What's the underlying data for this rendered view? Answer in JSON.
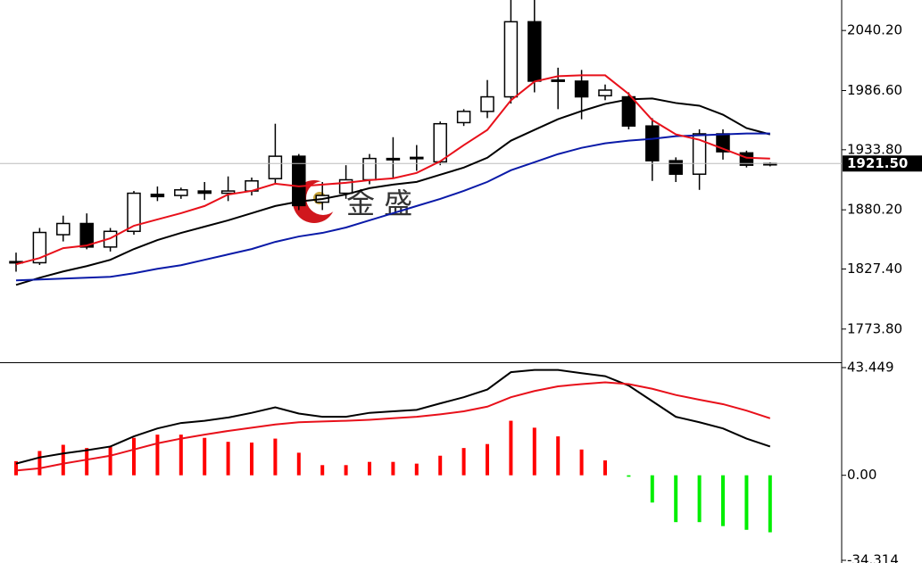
{
  "chart_data": [
    {
      "type": "candlestick",
      "open": [
        1833,
        1833,
        1858,
        1868,
        1847,
        1861,
        1894,
        1893,
        1897,
        1895,
        1897,
        1908,
        1928,
        1887,
        1895,
        1907,
        1925,
        1926,
        1923,
        1958,
        1968,
        1981,
        2048,
        1996,
        1995,
        1982,
        1981,
        1955,
        1924,
        1912,
        1948,
        1931,
        1921
      ],
      "high": [
        1842,
        1864,
        1875,
        1877,
        1864,
        1897,
        1901,
        1900,
        1905,
        1910,
        1909,
        1957,
        1930,
        1905,
        1920,
        1930,
        1945,
        1938,
        1959,
        1970,
        1996,
        2080,
        2080,
        2007,
        2005,
        1992,
        1985,
        1962,
        1927,
        1952,
        1952,
        1933,
        1922.5
      ],
      "low": [
        1825,
        1831,
        1852,
        1845,
        1843,
        1858,
        1888,
        1890,
        1889,
        1888,
        1893,
        1903,
        1880,
        1880,
        1890,
        1903,
        1908,
        1915,
        1920,
        1955,
        1962,
        1975,
        1985,
        1970,
        1961,
        1978,
        1952,
        1906,
        1905,
        1898,
        1925,
        1918,
        1919
      ],
      "close": [
        1834,
        1860,
        1868,
        1847,
        1861,
        1895,
        1892,
        1898,
        1895,
        1897,
        1906,
        1928,
        1884,
        1893,
        1907,
        1926,
        1926,
        1927,
        1957,
        1968,
        1981,
        2048,
        1995,
        1995,
        1981,
        1987,
        1955,
        1924,
        1912,
        1948,
        1932,
        1920,
        1921.5
      ],
      "up_color": "#ffffff",
      "down_color": "#000000",
      "overlays": [
        {
          "color": "#000000",
          "values": [
            1813.2,
            1819.6,
            1825.2,
            1830.0,
            1835.6,
            1845.2,
            1853.2,
            1859.6,
            1865.2,
            1870.8,
            1877.2,
            1883.6,
            1887.6,
            1889.9,
            1893.9,
            1899.5,
            1902.7,
            1905.1,
            1911.5,
            1917.9,
            1926.7,
            1941.9,
            1951.5,
            1961.1,
            1968.3,
            1974.7,
            1978.7,
            1979.5,
            1975.5,
            1973.1,
            1965.1,
            1953.1,
            1947.5
          ]
        },
        {
          "color": "#0a1aa8",
          "values": [
            1817.2,
            1818.0,
            1818.8,
            1819.6,
            1820.4,
            1823.6,
            1827.6,
            1830.8,
            1835.6,
            1840.4,
            1845.2,
            1851.6,
            1856.4,
            1859.6,
            1864.4,
            1870.8,
            1877.2,
            1883.6,
            1889.9,
            1897.1,
            1905.1,
            1915.5,
            1922.7,
            1929.9,
            1935.5,
            1939.5,
            1941.9,
            1943.5,
            1945.9,
            1946.7,
            1947.5,
            1948.3,
            1948.3
          ]
        },
        {
          "color": "#e8101a",
          "values": [
            1831.6,
            1837.2,
            1846.0,
            1848.4,
            1854.8,
            1866.0,
            1871.6,
            1877.2,
            1883.6,
            1893.9,
            1897.1,
            1903.5,
            1901.1,
            1902.7,
            1904.3,
            1906.7,
            1908.3,
            1913.1,
            1923.5,
            1937.9,
            1951.5,
            1977.9,
            1994.6,
            1999.4,
            2000.2,
            2000.2,
            1983.5,
            1960.3,
            1947.5,
            1942.7,
            1934.7,
            1926.7,
            1925.9
          ]
        }
      ],
      "ylim": [
        1745.0,
        2067.4
      ],
      "yticks": [
        {
          "value": 2040.2,
          "label": "2040.20"
        },
        {
          "value": 1986.6,
          "label": "1986.60"
        },
        {
          "value": 1933.8,
          "label": "1933.80"
        },
        {
          "value": 1880.2,
          "label": "1880.20"
        },
        {
          "value": 1827.4,
          "label": "1827.40"
        },
        {
          "value": 1773.8,
          "label": "1773.80"
        }
      ],
      "last_price": {
        "value": 1921.5,
        "label": "1921.50"
      },
      "watermark": "金 盛"
    },
    {
      "type": "macd",
      "histogram": [
        5.7,
        9.8,
        12.3,
        11.0,
        11.6,
        15.1,
        16.4,
        16.4,
        15.1,
        13.5,
        13.2,
        14.8,
        9.1,
        4.1,
        4.1,
        5.4,
        5.4,
        4.7,
        7.9,
        11.0,
        12.6,
        22.0,
        19.2,
        15.7,
        10.4,
        6.0,
        -0.6,
        -11.0,
        -18.9,
        -18.9,
        -20.5,
        -22.0,
        -23.0
      ],
      "positive_color": "#ff0000",
      "negative_color": "#00ee00",
      "lines": [
        {
          "color": "#000000",
          "values": [
            4.7,
            7.2,
            8.8,
            10.1,
            11.6,
            15.7,
            18.9,
            21.1,
            22.0,
            23.3,
            25.2,
            27.4,
            24.9,
            23.6,
            23.6,
            25.2,
            25.8,
            26.4,
            29.0,
            31.5,
            34.6,
            41.6,
            42.5,
            42.5,
            41.2,
            40.0,
            36.2,
            29.9,
            23.6,
            21.4,
            18.9,
            14.8,
            11.6
          ]
        },
        {
          "color": "#e8101a",
          "values": [
            1.9,
            2.8,
            4.7,
            6.3,
            7.9,
            10.4,
            12.9,
            14.8,
            16.4,
            17.9,
            19.2,
            20.5,
            21.4,
            21.7,
            22.0,
            22.4,
            23.0,
            23.6,
            24.6,
            25.8,
            27.7,
            31.5,
            34.0,
            35.9,
            36.8,
            37.5,
            36.8,
            34.9,
            32.4,
            30.5,
            28.7,
            26.1,
            23.0
          ]
        }
      ],
      "ylim": [
        -34.314,
        43.449
      ],
      "yticks": [
        43.449,
        {
          "value": 0,
          "label": "0.00"
        },
        {
          "value": -34.314,
          "label": "-34.314"
        }
      ]
    }
  ]
}
